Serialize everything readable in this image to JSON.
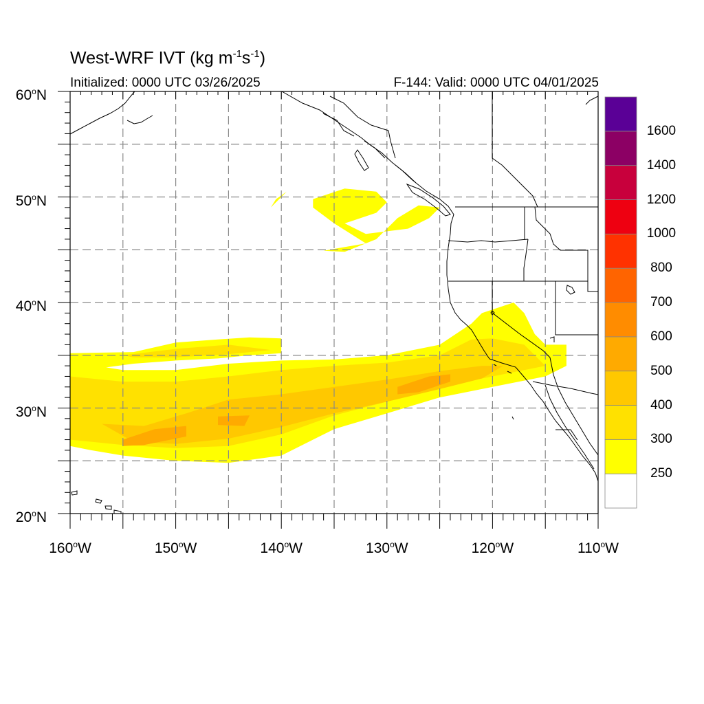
{
  "header": {
    "title_main": "West-WRF IVT (kg m",
    "title_exp1": "-1",
    "title_mid": "s",
    "title_exp2": "-1",
    "title_end": ")",
    "init_text": "Initialized: 0000 UTC 03/26/2025",
    "valid_text": "F-144: Valid: 0000 UTC 04/01/2025"
  },
  "axes": {
    "lat_labels": [
      {
        "lat": 60,
        "deg": "60",
        "dir": "N"
      },
      {
        "lat": 50,
        "deg": "50",
        "dir": "N"
      },
      {
        "lat": 40,
        "deg": "40",
        "dir": "N"
      },
      {
        "lat": 30,
        "deg": "30",
        "dir": "N"
      },
      {
        "lat": 20,
        "deg": "20",
        "dir": "N"
      }
    ],
    "lon_labels": [
      {
        "lon": -160,
        "deg": "160",
        "dir": "W"
      },
      {
        "lon": -150,
        "deg": "150",
        "dir": "W"
      },
      {
        "lon": -140,
        "deg": "140",
        "dir": "W"
      },
      {
        "lon": -130,
        "deg": "130",
        "dir": "W"
      },
      {
        "lon": -120,
        "deg": "120",
        "dir": "W"
      },
      {
        "lon": -110,
        "deg": "110",
        "dir": "W"
      }
    ],
    "lon_range": [
      -160,
      -110
    ],
    "lat_range": [
      20,
      60
    ],
    "grid_lons": [
      -155,
      -150,
      -145,
      -140,
      -135,
      -130,
      -125,
      -120,
      -115
    ],
    "grid_lats": [
      25,
      30,
      35,
      40,
      45,
      50,
      55
    ],
    "grid": "dashed"
  },
  "colorbar": {
    "levels": [
      {
        "label": "",
        "color": "#ffffff"
      },
      {
        "label": "250",
        "color": "#ffff00"
      },
      {
        "label": "300",
        "color": "#ffe100"
      },
      {
        "label": "400",
        "color": "#ffc800"
      },
      {
        "label": "500",
        "color": "#ffaa00"
      },
      {
        "label": "600",
        "color": "#ff8c00"
      },
      {
        "label": "700",
        "color": "#ff6400"
      },
      {
        "label": "800",
        "color": "#ff3200"
      },
      {
        "label": "1000",
        "color": "#ee0011"
      },
      {
        "label": "1200",
        "color": "#c8003c"
      },
      {
        "label": "1400",
        "color": "#8c0064"
      },
      {
        "label": "1600",
        "color": "#5a0096"
      }
    ]
  },
  "chart_data": {
    "type": "heatmap",
    "ivt_features": [
      {
        "name": "main-river",
        "level": "250",
        "points": [
          [
            -160,
            34.4
          ],
          [
            -155,
            33.6
          ],
          [
            -150,
            33.6
          ],
          [
            -145,
            34.2
          ],
          [
            -140,
            34.5
          ],
          [
            -135,
            34.6
          ],
          [
            -130,
            35.0
          ],
          [
            -125,
            36.0
          ],
          [
            -122,
            38.0
          ],
          [
            -121,
            39.0
          ],
          [
            -118,
            40.0
          ],
          [
            -117,
            39.0
          ],
          [
            -116,
            37.0
          ],
          [
            -115,
            36.0
          ],
          [
            -113,
            36.0
          ],
          [
            -113,
            34.0
          ],
          [
            -115,
            33.0
          ],
          [
            -120,
            32.0
          ],
          [
            -125,
            31.0
          ],
          [
            -130,
            29.5
          ],
          [
            -135,
            28.0
          ],
          [
            -138,
            26.5
          ],
          [
            -140,
            25.5
          ],
          [
            -145,
            24.8
          ],
          [
            -150,
            25.0
          ],
          [
            -155,
            25.5
          ],
          [
            -158,
            26.0
          ],
          [
            -160,
            26.4
          ]
        ]
      },
      {
        "name": "main-river",
        "level": "300",
        "points": [
          [
            -160,
            33.0
          ],
          [
            -155,
            32.5
          ],
          [
            -150,
            32.5
          ],
          [
            -145,
            33.0
          ],
          [
            -140,
            33.6
          ],
          [
            -135,
            34.0
          ],
          [
            -130,
            34.3
          ],
          [
            -125,
            35.0
          ],
          [
            -122,
            36.5
          ],
          [
            -120,
            36.6
          ],
          [
            -117,
            36.0
          ],
          [
            -115,
            34.0
          ],
          [
            -120,
            33.0
          ],
          [
            -125,
            32.0
          ],
          [
            -130,
            30.6
          ],
          [
            -135,
            29.3
          ],
          [
            -140,
            27.5
          ],
          [
            -145,
            26.4
          ],
          [
            -150,
            26.2
          ],
          [
            -155,
            26.5
          ],
          [
            -160,
            27.0
          ]
        ]
      },
      {
        "name": "main-river",
        "level": "400",
        "points": [
          [
            -157,
            28.5
          ],
          [
            -153,
            28.3
          ],
          [
            -149,
            29.5
          ],
          [
            -145,
            30.8
          ],
          [
            -140,
            31.3
          ],
          [
            -135,
            32.0
          ],
          [
            -130,
            32.7
          ],
          [
            -125,
            33.5
          ],
          [
            -121,
            34.0
          ],
          [
            -119,
            34.0
          ],
          [
            -121,
            32.8
          ],
          [
            -125,
            31.8
          ],
          [
            -130,
            30.6
          ],
          [
            -135,
            29.5
          ],
          [
            -140,
            28.2
          ],
          [
            -145,
            27.1
          ],
          [
            -150,
            26.6
          ],
          [
            -154,
            26.8
          ]
        ]
      },
      {
        "name": "main-river-core",
        "level": "500",
        "points": [
          [
            -146,
            29.2
          ],
          [
            -143,
            29.3
          ],
          [
            -143.5,
            28.3
          ],
          [
            -146,
            28.4
          ]
        ]
      },
      {
        "name": "main-river-core",
        "level": "500",
        "points": [
          [
            -152,
            28.0
          ],
          [
            -149,
            28.3
          ],
          [
            -149,
            27.3
          ],
          [
            -153,
            26.5
          ],
          [
            -155,
            26.4
          ],
          [
            -155,
            27.0
          ]
        ]
      },
      {
        "name": "main-river-core",
        "level": "500",
        "points": [
          [
            -129,
            32.0
          ],
          [
            -126,
            33.0
          ],
          [
            -124,
            33.2
          ],
          [
            -124,
            32.5
          ],
          [
            -127,
            31.5
          ],
          [
            -129,
            31.3
          ]
        ]
      },
      {
        "name": "northern-band",
        "level": "250",
        "points": [
          [
            -160,
            35.2
          ],
          [
            -154,
            35.3
          ],
          [
            -150,
            36.2
          ],
          [
            -146,
            36.5
          ],
          [
            -143,
            36.7
          ],
          [
            -140,
            36.6
          ],
          [
            -140,
            35.2
          ],
          [
            -143,
            35.0
          ],
          [
            -146,
            34.7
          ],
          [
            -150,
            34.5
          ],
          [
            -154,
            34.2
          ],
          [
            -157,
            33.8
          ],
          [
            -160,
            33.9
          ]
        ]
      },
      {
        "name": "northern-band",
        "level": "300",
        "points": [
          [
            -155,
            35.0
          ],
          [
            -150,
            35.6
          ],
          [
            -145,
            36.0
          ],
          [
            -141,
            35.5
          ],
          [
            -145,
            35.1
          ],
          [
            -150,
            34.8
          ],
          [
            -154,
            34.8
          ]
        ]
      },
      {
        "name": "pacific-northwest",
        "level": "250",
        "points": [
          [
            -137,
            49.8
          ],
          [
            -134,
            50.8
          ],
          [
            -131,
            50.5
          ],
          [
            -130,
            49.5
          ],
          [
            -131,
            48.5
          ],
          [
            -134,
            47.5
          ],
          [
            -132,
            46.5
          ],
          [
            -128,
            47.0
          ],
          [
            -126,
            48.0
          ],
          [
            -125,
            49.0
          ],
          [
            -127,
            49.2
          ],
          [
            -129,
            48.0
          ],
          [
            -131,
            46.0
          ],
          [
            -134,
            44.8
          ],
          [
            -136,
            44.9
          ],
          [
            -132,
            45.6
          ],
          [
            -135,
            47.5
          ],
          [
            -137,
            49.0
          ]
        ]
      },
      {
        "name": "pacific-northwest",
        "level": "250",
        "points": [
          [
            -141,
            49.0
          ],
          [
            -140,
            50.0
          ],
          [
            -139.5,
            50.5
          ],
          [
            -140.5,
            49.8
          ]
        ]
      }
    ]
  }
}
